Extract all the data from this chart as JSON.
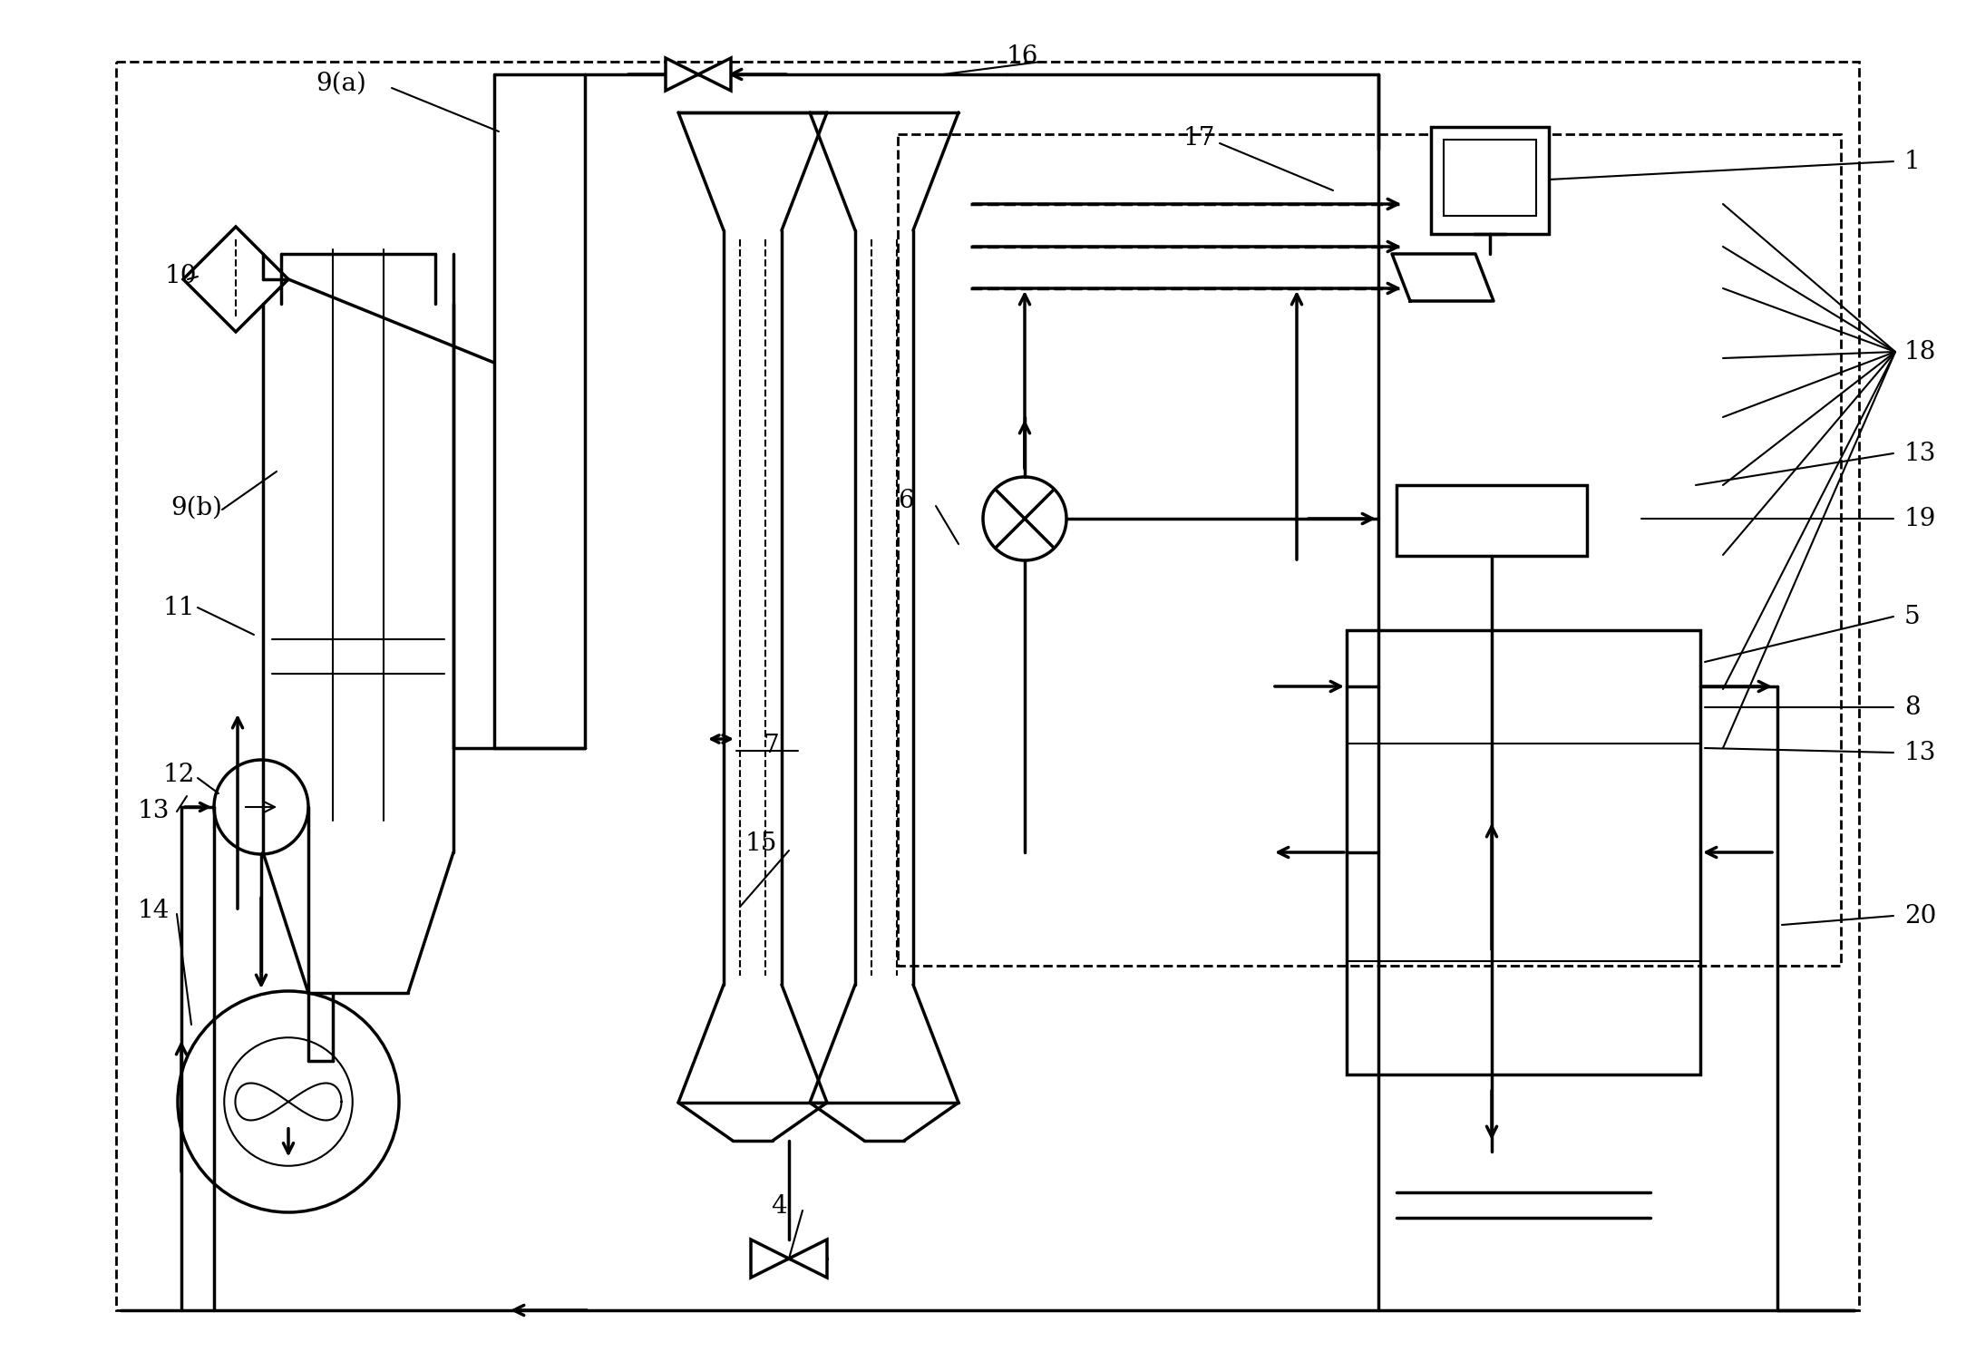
{
  "bg_color": "#ffffff",
  "line_color": "#000000",
  "lw": 2.5,
  "lw_thin": 1.5,
  "fig_width": 21.68,
  "fig_height": 15.12
}
